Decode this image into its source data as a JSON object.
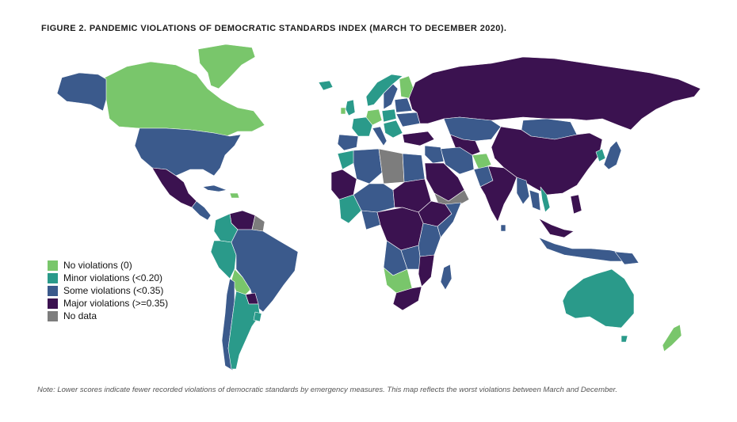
{
  "title": "FIGURE 2. PANDEMIC VIOLATIONS OF DEMOCRATIC STANDARDS INDEX (MARCH TO DECEMBER 2020).",
  "legend": [
    {
      "label": "No violations (0)",
      "color": "#79c66b"
    },
    {
      "label": "Minor violations (<0.20)",
      "color": "#2a9a8a"
    },
    {
      "label": "Some violations (<0.35)",
      "color": "#3b5a8c"
    },
    {
      "label": "Major violations (>=0.35)",
      "color": "#3b1250"
    },
    {
      "label": "No data",
      "color": "#7d7d7d"
    }
  ],
  "note": "Note: Lower scores indicate fewer recorded violations of democratic standards by emergency measures. This map reflects the worst violations between March and December."
}
